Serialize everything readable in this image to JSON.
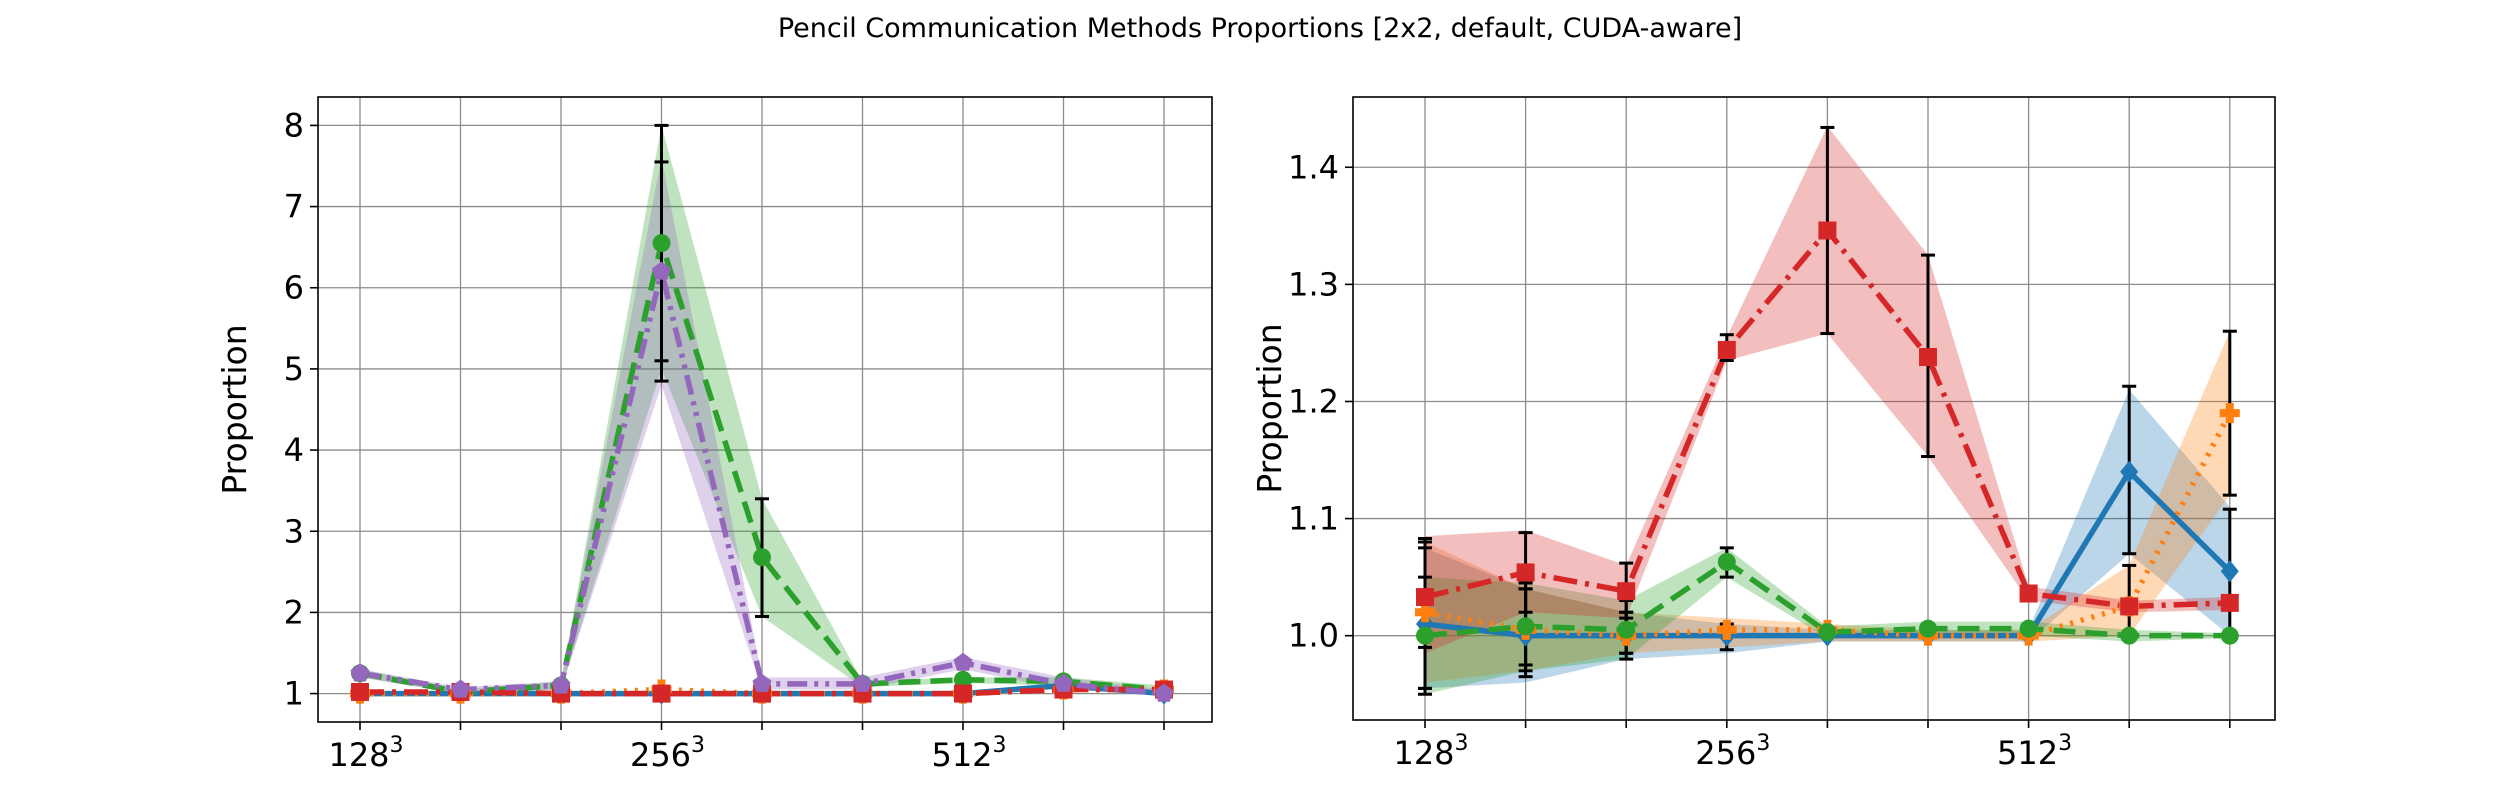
{
  "figure": {
    "title": "Pencil Communication Methods Proportions [2x2, default, CUDA-aware]"
  },
  "chart_data": [
    {
      "type": "line",
      "ylabel": "Proportion",
      "xlabel": "",
      "ylim": [
        0.65,
        8.35
      ],
      "grid": true,
      "x_tick_labels": [
        {
          "base": "128",
          "sup": "3",
          "index": 0
        },
        {
          "base": "256",
          "sup": "3",
          "index": 3
        },
        {
          "base": "512",
          "sup": "3",
          "index": 6
        }
      ],
      "yticks": [
        1,
        2,
        3,
        4,
        5,
        6,
        7,
        8
      ],
      "series": [
        {
          "color": "#1f77b4",
          "marker": "diamond",
          "dash": "solid",
          "values": [
            1.0,
            1.0,
            1.0,
            1.0,
            1.0,
            1.0,
            1.0,
            1.1,
            1.0
          ],
          "band": null,
          "err": null
        },
        {
          "color": "#ff7f0e",
          "marker": "plus",
          "dash": "dotted",
          "values": [
            1.0,
            1.0,
            1.0,
            1.05,
            1.0,
            1.0,
            1.0,
            1.05,
            1.05
          ],
          "band": null,
          "err": null
        },
        {
          "color": "#2ca02c",
          "marker": "circle",
          "dash": "dashed",
          "values": [
            1.25,
            1.02,
            1.1,
            6.55,
            2.68,
            1.12,
            1.17,
            1.15,
            1.05
          ],
          "band": [
            [
              1.2,
              1.3
            ],
            [
              1.0,
              1.05
            ],
            [
              1.05,
              1.15
            ],
            [
              5.0,
              8.0
            ],
            [
              1.95,
              3.4
            ],
            [
              1.08,
              1.15
            ],
            [
              1.13,
              1.2
            ],
            [
              1.1,
              1.2
            ],
            [
              1.0,
              1.1
            ]
          ],
          "err": [
            null,
            null,
            null,
            [
              5.1,
              8.0
            ],
            [
              1.95,
              3.4
            ],
            null,
            null,
            null,
            null
          ]
        },
        {
          "color": "#d62728",
          "marker": "square",
          "dash": "dashdot",
          "values": [
            1.02,
            1.02,
            1.0,
            1.0,
            1.0,
            1.0,
            1.0,
            1.05,
            1.05
          ],
          "band": null,
          "err": null
        },
        {
          "color": "#9467bd",
          "marker": "pentagon",
          "dash": "dashdotdot",
          "values": [
            1.25,
            1.05,
            1.1,
            6.2,
            1.12,
            1.12,
            1.38,
            1.12,
            1.0
          ],
          "band": [
            [
              1.2,
              1.3
            ],
            [
              1.0,
              1.08
            ],
            [
              1.05,
              1.15
            ],
            [
              4.8,
              7.6
            ],
            [
              1.05,
              1.2
            ],
            [
              1.05,
              1.2
            ],
            [
              1.3,
              1.45
            ],
            [
              1.05,
              1.2
            ],
            [
              0.98,
              1.05
            ]
          ],
          "err": [
            null,
            null,
            null,
            [
              4.85,
              7.55
            ],
            null,
            null,
            null,
            null,
            null
          ]
        }
      ]
    },
    {
      "type": "line",
      "ylabel": "Proportion",
      "xlabel": "",
      "ylim": [
        0.928,
        1.46
      ],
      "grid": true,
      "x_tick_labels": [
        {
          "base": "128",
          "sup": "3",
          "index": 0
        },
        {
          "base": "256",
          "sup": "3",
          "index": 3
        },
        {
          "base": "512",
          "sup": "3",
          "index": 6
        }
      ],
      "yticks": [
        1.0,
        1.1,
        1.2,
        1.3,
        1.4
      ],
      "series": [
        {
          "color": "#1f77b4",
          "marker": "diamond",
          "dash": "solid",
          "values": [
            1.01,
            1.0,
            1.0,
            1.0,
            1.0,
            1.0,
            1.0,
            1.14,
            1.055
          ],
          "band": [
            [
              0.955,
              1.075
            ],
            [
              0.96,
              1.04
            ],
            [
              0.98,
              1.02
            ],
            [
              0.985,
              1.01
            ],
            [
              0.995,
              1.005
            ],
            [
              0.995,
              1.005
            ],
            [
              0.995,
              1.005
            ],
            [
              1.07,
              1.21
            ],
            [
              1.0,
              1.11
            ]
          ],
          "err": [
            [
              0.955,
              1.075
            ],
            [
              0.965,
              1.04
            ],
            [
              0.98,
              1.02
            ],
            [
              0.988,
              1.01
            ],
            null,
            null,
            null,
            [
              1.07,
              1.213
            ],
            [
              1.0,
              1.108
            ]
          ]
        },
        {
          "color": "#ff7f0e",
          "marker": "plus",
          "dash": "dotted",
          "values": [
            1.02,
            1.005,
            1.0,
            1.005,
            1.005,
            1.0,
            1.0,
            1.025,
            1.19
          ],
          "band": [
            [
              0.96,
              1.08
            ],
            [
              0.97,
              1.04
            ],
            [
              0.985,
              1.02
            ],
            [
              0.99,
              1.015
            ],
            [
              0.995,
              1.01
            ],
            [
              0.995,
              1.005
            ],
            [
              0.995,
              1.005
            ],
            [
              1.0,
              1.06
            ],
            [
              1.12,
              1.26
            ]
          ],
          "err": [
            [
              0.955,
              1.08
            ],
            [
              0.97,
              1.04
            ],
            [
              0.985,
              1.02
            ],
            null,
            null,
            null,
            null,
            [
              1.0,
              1.06
            ],
            [
              1.12,
              1.26
            ]
          ]
        },
        {
          "color": "#2ca02c",
          "marker": "circle",
          "dash": "dashed",
          "values": [
            1.0,
            1.008,
            1.005,
            1.063,
            1.003,
            1.006,
            1.006,
            1.0,
            1.0
          ],
          "band": [
            [
              0.95,
              1.05
            ],
            [
              0.97,
              1.045
            ],
            [
              0.98,
              1.03
            ],
            [
              1.05,
              1.075
            ],
            [
              0.998,
              1.008
            ],
            [
              1.0,
              1.012
            ],
            [
              1.0,
              1.012
            ],
            [
              0.995,
              1.005
            ],
            [
              0.998,
              1.002
            ]
          ],
          "err": [
            [
              0.95,
              1.05
            ],
            [
              0.975,
              1.045
            ],
            [
              0.985,
              1.03
            ],
            [
              1.05,
              1.075
            ],
            null,
            null,
            null,
            null,
            null
          ]
        },
        {
          "color": "#d62728",
          "marker": "square",
          "dash": "dashdot",
          "values": [
            1.033,
            1.054,
            1.038,
            1.244,
            1.346,
            1.238,
            1.036,
            1.025,
            1.028
          ],
          "band": [
            [
              0.985,
              1.085
            ],
            [
              1.02,
              1.09
            ],
            [
              1.015,
              1.06
            ],
            [
              1.235,
              1.255
            ],
            [
              1.258,
              1.435
            ],
            [
              1.153,
              1.325
            ],
            [
              1.03,
              1.042
            ],
            [
              1.02,
              1.03
            ],
            [
              1.022,
              1.033
            ]
          ],
          "err": [
            [
              0.99,
              1.083
            ],
            [
              1.02,
              1.088
            ],
            [
              1.015,
              1.062
            ],
            [
              1.235,
              1.257
            ],
            [
              1.258,
              1.434
            ],
            [
              1.153,
              1.325
            ],
            null,
            null,
            null
          ]
        }
      ]
    }
  ]
}
